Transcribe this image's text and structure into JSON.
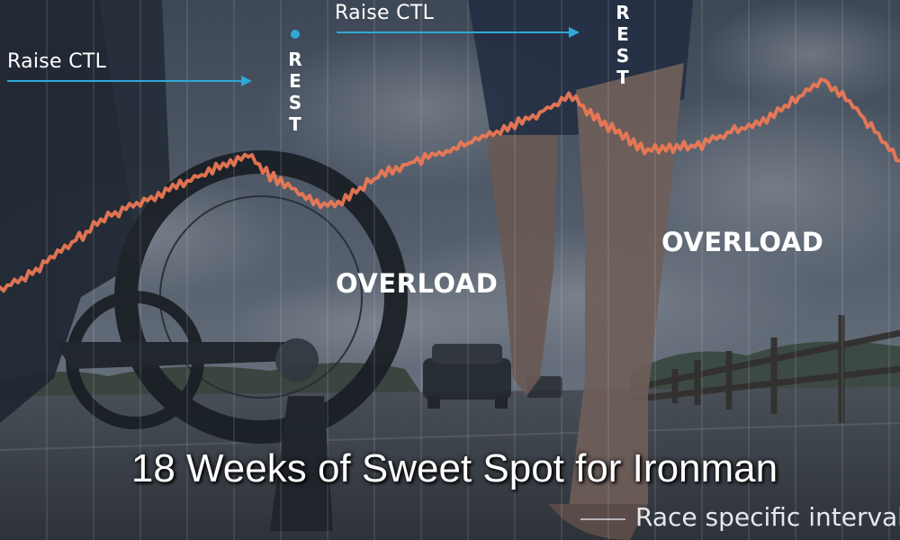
{
  "title": "18 Weeks of Sweet Spot for Ironman",
  "annotations": {
    "ctl_left": "Raise CTL",
    "ctl_right": "Raise CTL",
    "rest_left": "REST",
    "rest_right": "REST",
    "overload_left": "OVERLOAD",
    "overload_right": "OVERLOAD",
    "race_specific": "Race specific intervals"
  },
  "colors": {
    "fitness_line": "#f07a55",
    "ctl_arrow": "#2fa8d8",
    "background_tint": "#2b3240"
  },
  "icons": [
    "cyclist-photo",
    "runner-photo",
    "fitness-trend-line"
  ]
}
